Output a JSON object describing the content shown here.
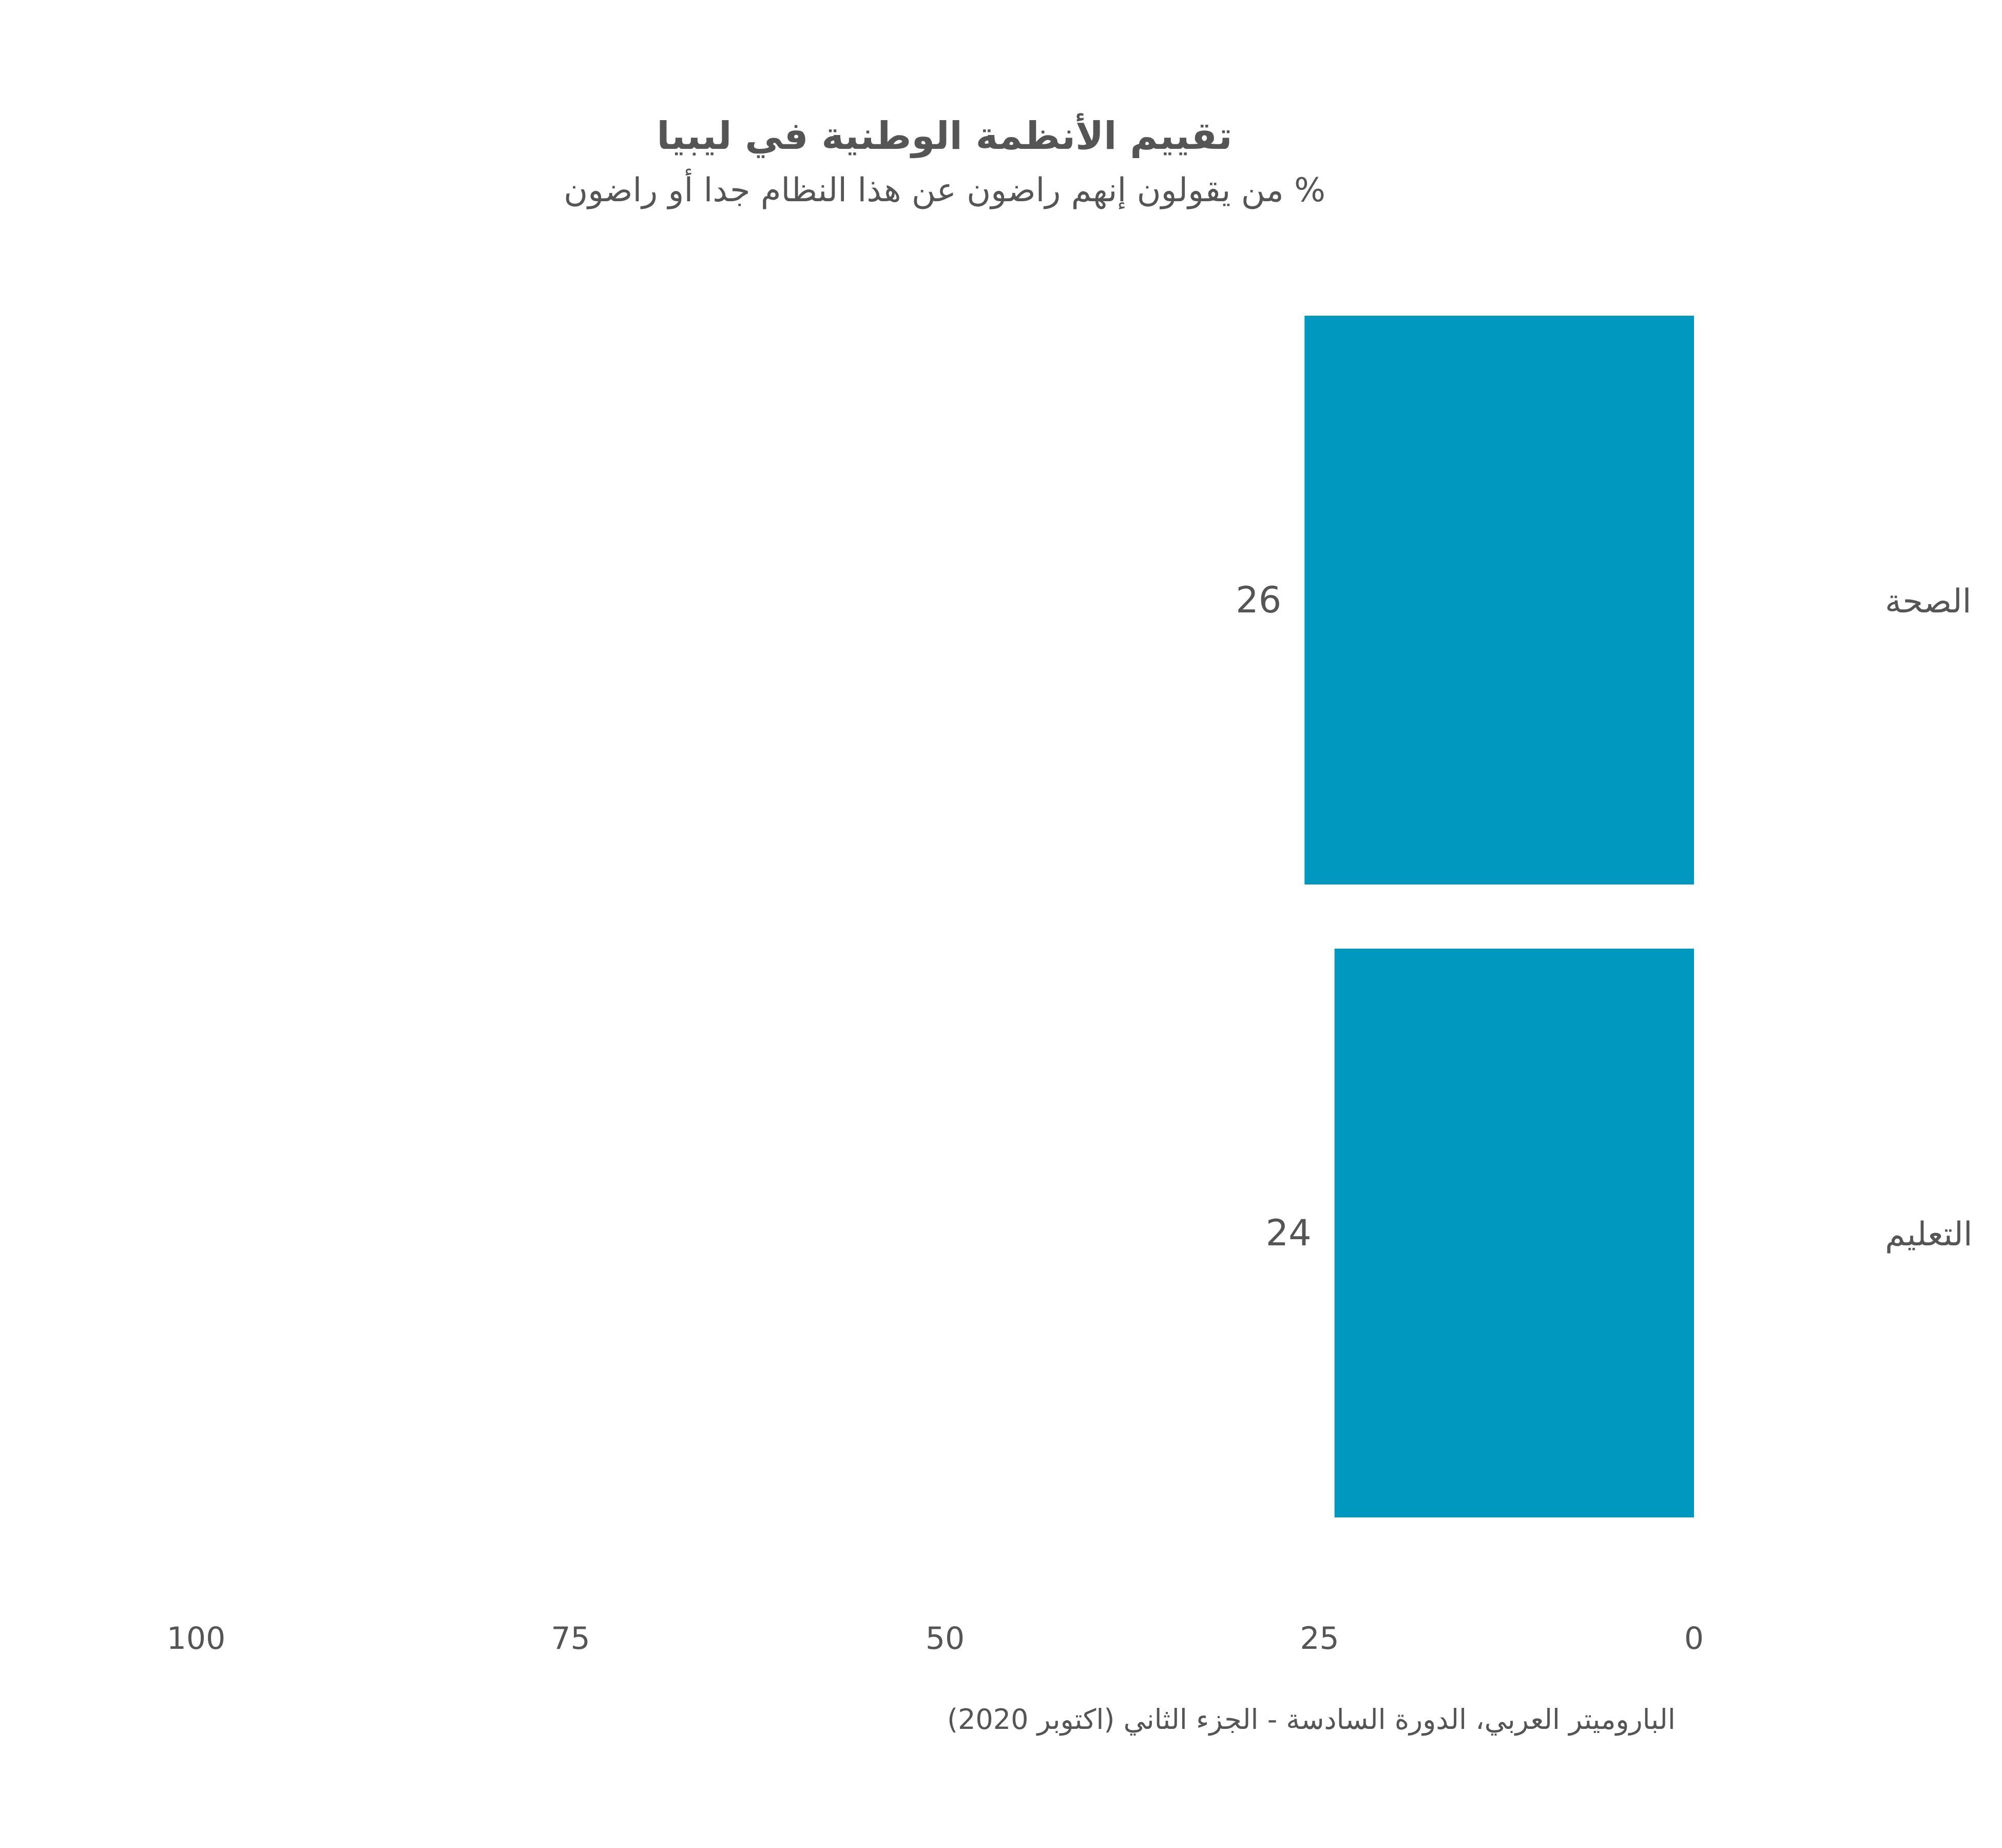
{
  "chart_data": {
    "type": "bar",
    "orientation": "horizontal",
    "direction": "right-to-left",
    "title": "تقييم الأنظمة الوطنية في ليبيا",
    "subtitle": "% من يقولون إنهم راضون عن هذا النظام جدا أو راضون",
    "categories": [
      "الصحة",
      "التعليم"
    ],
    "values": [
      26,
      24
    ],
    "value_labels": [
      "26",
      "24"
    ],
    "xlim": [
      0,
      100
    ],
    "ticks": [
      0,
      25,
      50,
      75,
      100
    ],
    "tick_labels": [
      "0",
      "25",
      "50",
      "75",
      "100"
    ],
    "grid": false,
    "source": "الباروميتر العربي، الدورة السادسة - الجزء الثاني (اكتوبر 2020)",
    "bar_color": "#0098bf",
    "text_color": "#555555"
  }
}
